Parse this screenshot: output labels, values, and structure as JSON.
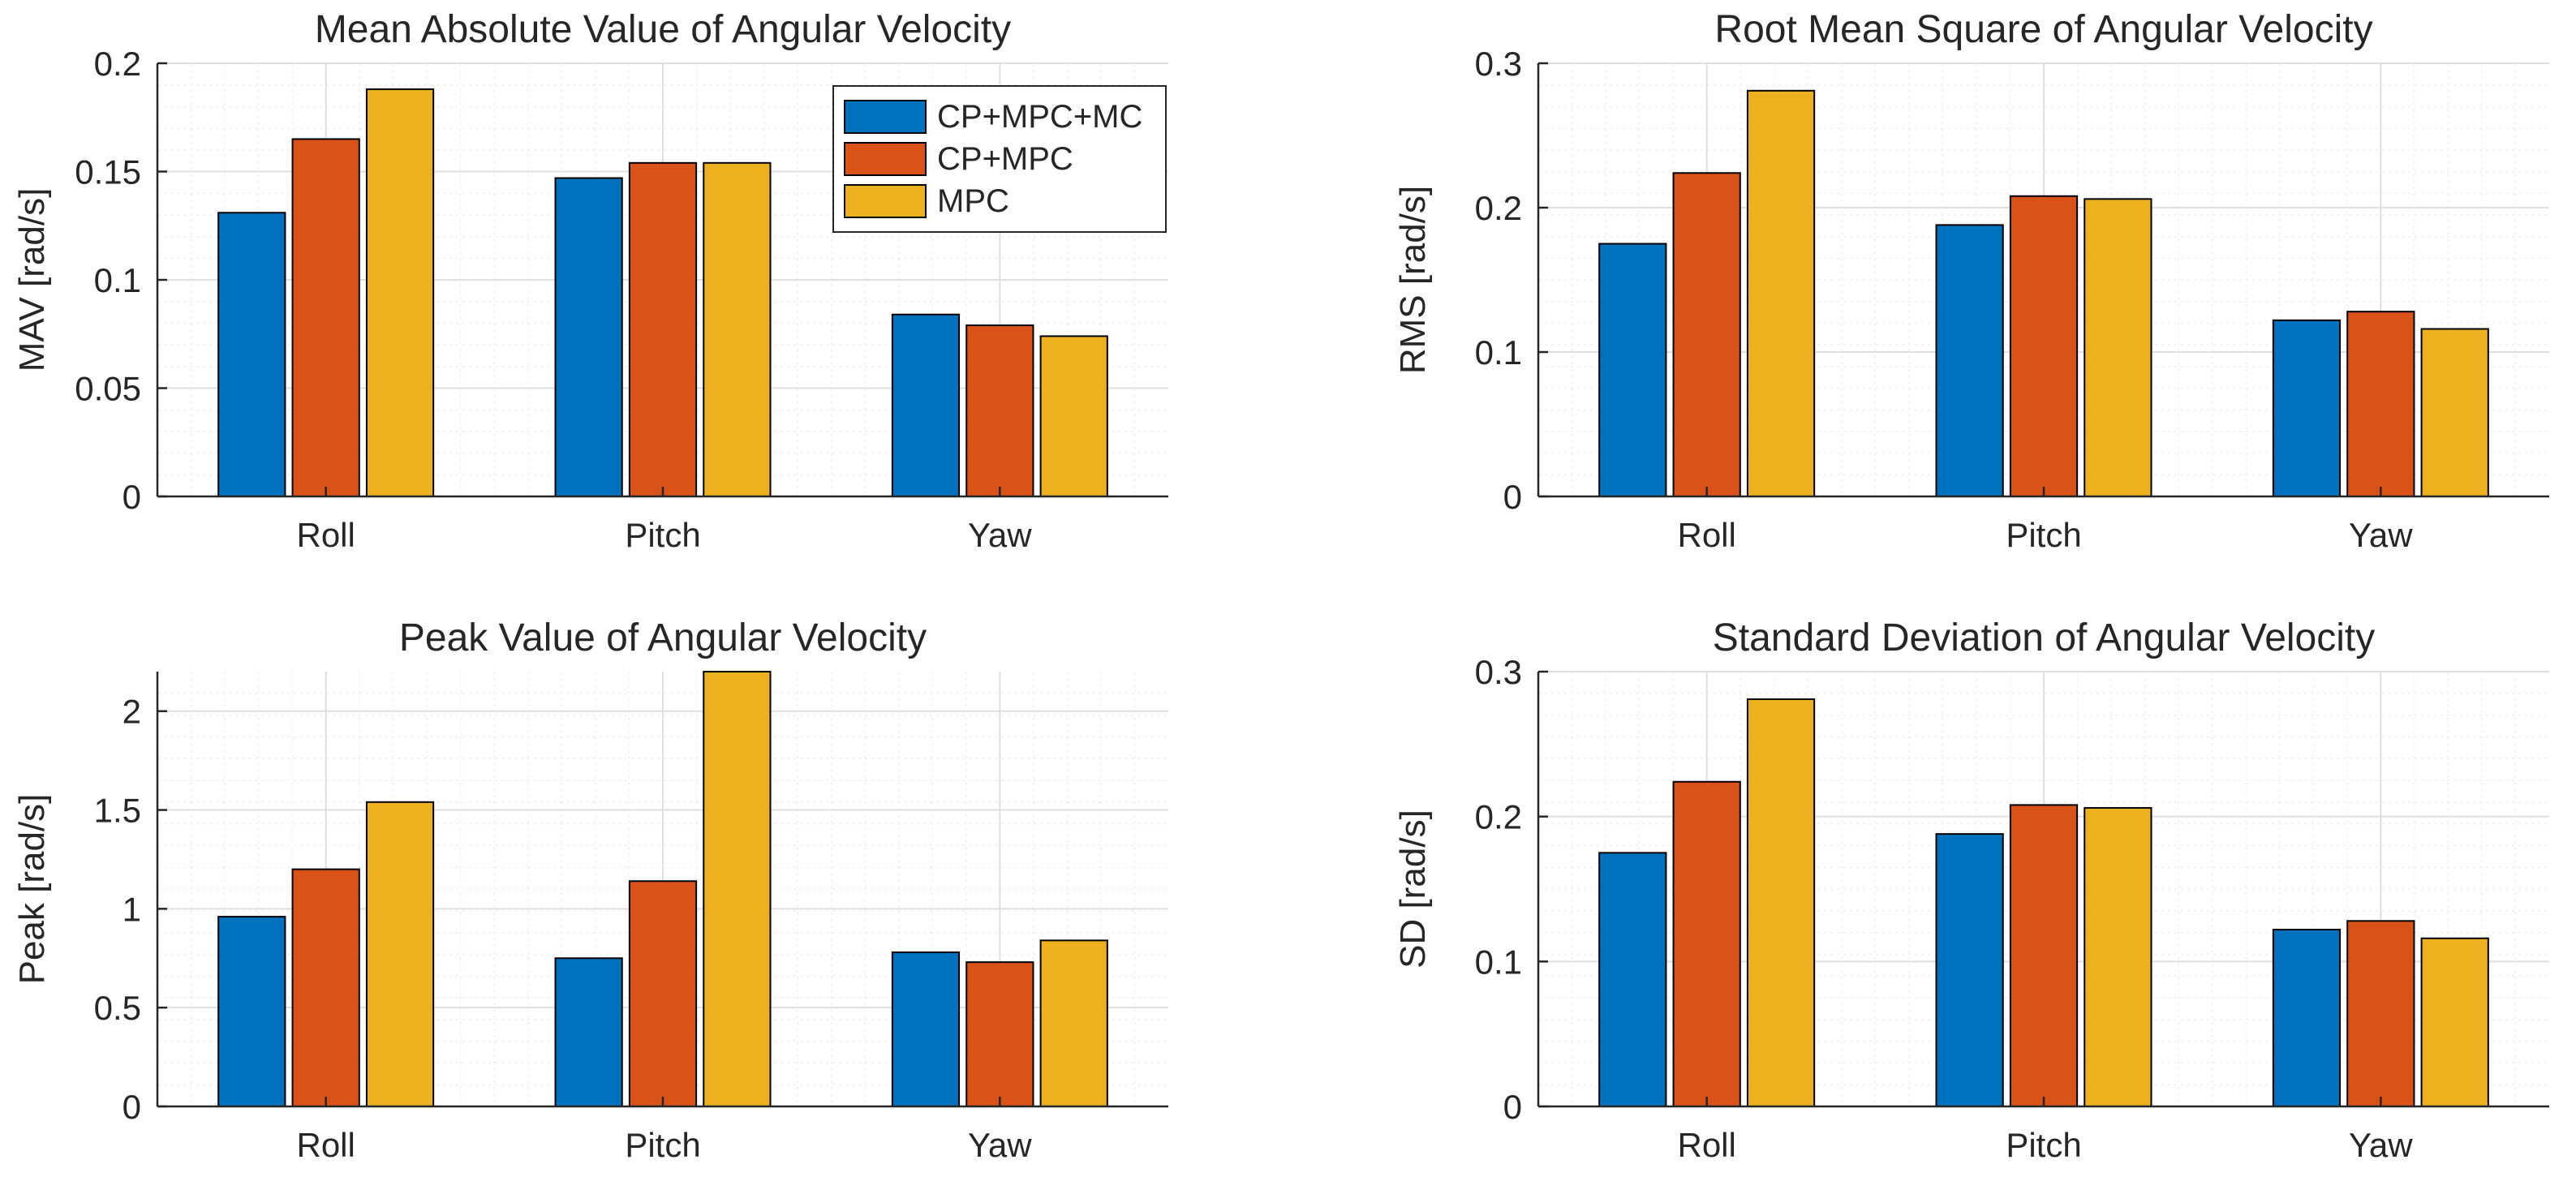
{
  "chart_data": [
    {
      "type": "bar",
      "title": "Mean Absolute Value of Angular Velocity",
      "xlabel": "",
      "ylabel": "MAV [rad/s]",
      "categories": [
        "Roll",
        "Pitch",
        "Yaw"
      ],
      "ylim": [
        0,
        0.2
      ],
      "yticks": [
        0,
        0.05,
        0.1,
        0.15,
        0.2
      ],
      "ytick_labels": [
        "0",
        "0.05",
        "0.1",
        "0.15",
        "0.2"
      ],
      "grid": true,
      "minor_grid": true,
      "legend": "top-right",
      "series": [
        {
          "name": "CP+MPC+MC",
          "values": [
            0.131,
            0.147,
            0.084
          ]
        },
        {
          "name": "CP+MPC",
          "values": [
            0.165,
            0.154,
            0.079
          ]
        },
        {
          "name": "MPC",
          "values": [
            0.188,
            0.154,
            0.074
          ]
        }
      ]
    },
    {
      "type": "bar",
      "title": "Root Mean Square of Angular Velocity",
      "xlabel": "",
      "ylabel": "RMS [rad/s]",
      "categories": [
        "Roll",
        "Pitch",
        "Yaw"
      ],
      "ylim": [
        0,
        0.3
      ],
      "yticks": [
        0,
        0.1,
        0.2,
        0.3
      ],
      "ytick_labels": [
        "0",
        "0.1",
        "0.2",
        "0.3"
      ],
      "grid": true,
      "minor_grid": true,
      "legend": "none",
      "series": [
        {
          "name": "CP+MPC+MC",
          "values": [
            0.175,
            0.188,
            0.122
          ]
        },
        {
          "name": "CP+MPC",
          "values": [
            0.224,
            0.208,
            0.128
          ]
        },
        {
          "name": "MPC",
          "values": [
            0.281,
            0.206,
            0.116
          ]
        }
      ]
    },
    {
      "type": "bar",
      "title": "Peak Value of Angular Velocity",
      "xlabel": "",
      "ylabel": "Peak [rad/s]",
      "categories": [
        "Roll",
        "Pitch",
        "Yaw"
      ],
      "ylim": [
        0,
        2.2
      ],
      "yticks": [
        0,
        0.5,
        1,
        1.5,
        2
      ],
      "ytick_labels": [
        "0",
        "0.5",
        "1",
        "1.5",
        "2"
      ],
      "grid": true,
      "minor_grid": true,
      "legend": "none",
      "series": [
        {
          "name": "CP+MPC+MC",
          "values": [
            0.96,
            0.75,
            0.78
          ]
        },
        {
          "name": "CP+MPC",
          "values": [
            1.2,
            1.14,
            0.73
          ]
        },
        {
          "name": "MPC",
          "values": [
            1.54,
            2.2,
            0.84
          ]
        }
      ]
    },
    {
      "type": "bar",
      "title": "Standard Deviation of Angular Velocity",
      "xlabel": "",
      "ylabel": "SD [rad/s]",
      "categories": [
        "Roll",
        "Pitch",
        "Yaw"
      ],
      "ylim": [
        0,
        0.3
      ],
      "yticks": [
        0,
        0.1,
        0.2,
        0.3
      ],
      "ytick_labels": [
        "0",
        "0.1",
        "0.2",
        "0.3"
      ],
      "grid": true,
      "minor_grid": true,
      "legend": "none",
      "series": [
        {
          "name": "CP+MPC+MC",
          "values": [
            0.175,
            0.188,
            0.122
          ]
        },
        {
          "name": "CP+MPC",
          "values": [
            0.224,
            0.208,
            0.128
          ]
        },
        {
          "name": "MPC",
          "values": [
            0.281,
            0.206,
            0.116
          ]
        }
      ]
    }
  ],
  "colors": {
    "series": [
      "#0072BD",
      "#D95319",
      "#EDB120"
    ],
    "axis": "#262626",
    "grid": "#DFDFDF",
    "minor_grid": "#EFEFEF"
  }
}
